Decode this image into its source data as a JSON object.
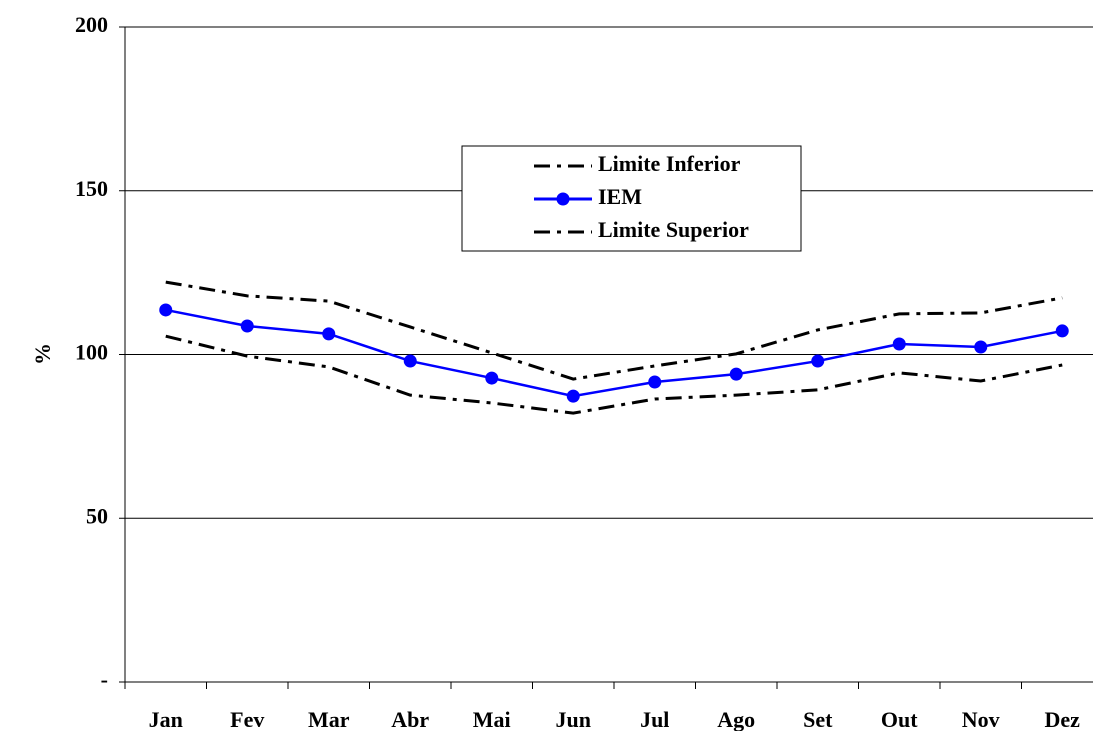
{
  "chart_data": {
    "type": "line",
    "y_label": "%",
    "categories": [
      "Jan",
      "Fev",
      "Mar",
      "Abr",
      "Mai",
      "Jun",
      "Jul",
      "Ago",
      "Set",
      "Out",
      "Nov",
      "Dez"
    ],
    "series": [
      {
        "name": "Limite Inferior",
        "color": "#000000",
        "line_style": "dash-dot",
        "marker": "none",
        "values": [
          105.6,
          99.5,
          96.2,
          87.6,
          85.2,
          82.1,
          86.4,
          87.6,
          89.2,
          94.4,
          91.9,
          96.8
        ]
      },
      {
        "name": "IEM",
        "color": "#0000ff",
        "line_style": "solid",
        "marker": "circle",
        "values": [
          113.6,
          108.7,
          106.3,
          98.0,
          92.8,
          87.3,
          91.6,
          94.0,
          98.0,
          103.2,
          102.3,
          107.2
        ]
      },
      {
        "name": "Limite Superior",
        "color": "#000000",
        "line_style": "dash-dot",
        "marker": "none",
        "values": [
          122.1,
          117.9,
          116.3,
          108.4,
          100.5,
          92.5,
          96.5,
          100.2,
          107.5,
          112.4,
          112.7,
          117.3
        ]
      }
    ],
    "ylim": [
      0,
      200
    ],
    "yticks": [
      {
        "value": 0,
        "label": "-"
      },
      50,
      100,
      150,
      200
    ],
    "grid": true,
    "legend": "top-center"
  }
}
